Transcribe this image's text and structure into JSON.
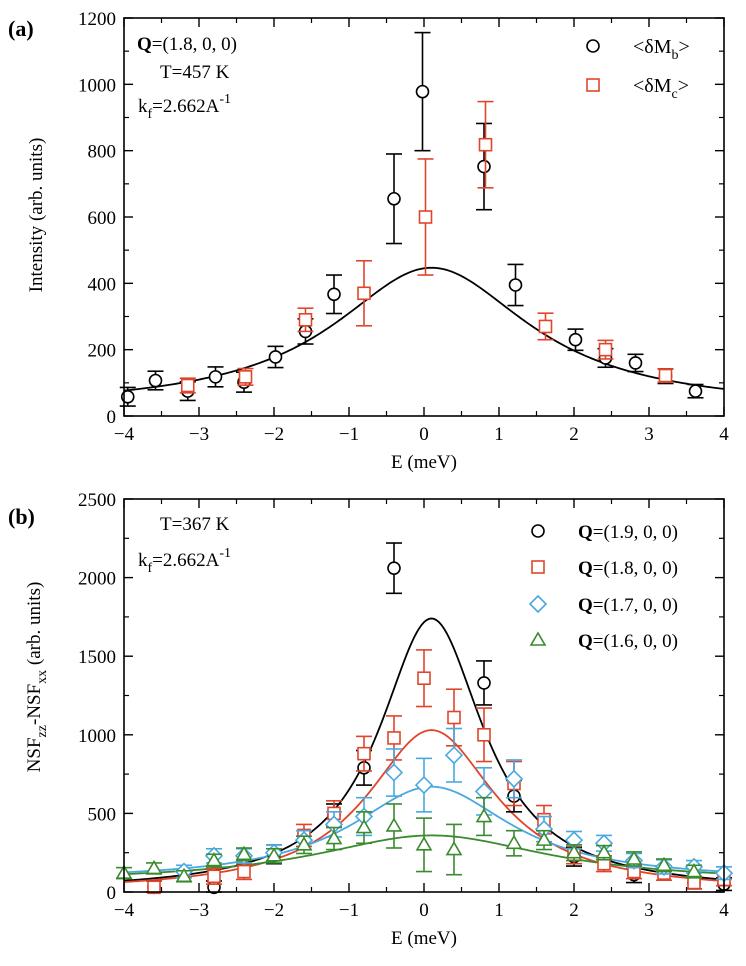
{
  "chart_data": [
    {
      "type": "scatter",
      "panel_label": "(a)",
      "xlabel": "E (meV)",
      "ylabel": "Intensity (arb. units)",
      "xlim": [
        -4,
        4
      ],
      "ylim": [
        0,
        1200
      ],
      "xticks": [
        "−4",
        "−3",
        "−2",
        "−1",
        "0",
        "1",
        "2",
        "3",
        "4"
      ],
      "yticks": [
        "0",
        "200",
        "400",
        "600",
        "800",
        "1000",
        "1200"
      ],
      "annotations": {
        "q_bold": "Q",
        "q_rest": "=(1.8, 0, 0)",
        "temperature": "T=457 K",
        "kf_main": "k",
        "kf_sub": "f",
        "kf_rest": "=2.662A",
        "kf_sup": "-1"
      },
      "legend": [
        {
          "main": "<δM",
          "sub": "b",
          "tail": ">",
          "marker": "circle",
          "color": "#000000"
        },
        {
          "main": "<δM",
          "sub": "c",
          "tail": ">",
          "marker": "square",
          "color": "#e0452b"
        }
      ],
      "series": [
        {
          "name": "<δMb>",
          "marker": "circle",
          "color": "#000000",
          "x": [
            -3.95,
            -3.58,
            -3.15,
            -2.78,
            -2.4,
            -1.98,
            -1.58,
            -1.2,
            -0.4,
            -0.02,
            0.8,
            1.22,
            2.02,
            2.42,
            2.82,
            3.22,
            3.62
          ],
          "y": [
            58,
            107,
            75,
            118,
            102,
            178,
            255,
            367,
            655,
            978,
            752,
            395,
            230,
            175,
            160,
            120,
            75
          ],
          "err": [
            28,
            28,
            28,
            30,
            30,
            32,
            38,
            58,
            135,
            178,
            130,
            62,
            32,
            28,
            26,
            22,
            20
          ]
        },
        {
          "name": "<δMc>",
          "marker": "square",
          "color": "#e0452b",
          "x": [
            -3.15,
            -2.38,
            -1.58,
            -0.8,
            0.02,
            0.82,
            1.62,
            2.42,
            3.22
          ],
          "y": [
            92,
            118,
            290,
            370,
            600,
            818,
            270,
            200,
            122
          ],
          "err": [
            22,
            25,
            35,
            98,
            175,
            130,
            40,
            28,
            20
          ]
        }
      ],
      "fits": [
        {
          "name": "fit",
          "color": "#000000",
          "amplitude": 427,
          "center": 0.1,
          "width": 1.6,
          "baseline": 20
        }
      ]
    },
    {
      "type": "scatter",
      "panel_label": "(b)",
      "xlabel": "E (meV)",
      "ylabel_main": "NSF",
      "ylabel_sub1": "zz",
      "ylabel_mid": "-NSF",
      "ylabel_sub2": "xx",
      "ylabel_tail": " (arb. units)",
      "xlim": [
        -4,
        4
      ],
      "ylim": [
        0,
        2500
      ],
      "xticks": [
        "−4",
        "−3",
        "−2",
        "−1",
        "0",
        "1",
        "2",
        "3",
        "4"
      ],
      "yticks": [
        "0",
        "500",
        "1000",
        "1500",
        "2000",
        "2500"
      ],
      "annotations": {
        "temperature": "T=367 K",
        "kf_main": "k",
        "kf_sub": "f",
        "kf_rest": "=2.662A",
        "kf_sup": "-1"
      },
      "legend": [
        {
          "bold": "Q",
          "rest": "=(1.9, 0, 0)",
          "marker": "circle",
          "color": "#000000"
        },
        {
          "bold": "Q",
          "rest": "=(1.8, 0, 0)",
          "marker": "square",
          "color": "#e0452b"
        },
        {
          "bold": "Q",
          "rest": "=(1.7, 0, 0)",
          "marker": "diamond",
          "color": "#4aa8e0"
        },
        {
          "bold": "Q",
          "rest": "=(1.6, 0, 0)",
          "marker": "triangle",
          "color": "#3a8a2e"
        }
      ],
      "series": [
        {
          "name": "Q=(1.9, 0, 0)",
          "marker": "circle",
          "color": "#000000",
          "x": [
            -3.6,
            -2.8,
            -2.0,
            -1.2,
            -0.8,
            -0.4,
            0.8,
            1.2,
            2.0,
            2.8,
            3.6,
            4.0
          ],
          "y": [
            30,
            30,
            240,
            490,
            790,
            2060,
            1330,
            610,
            225,
            110,
            60,
            50
          ],
          "err": [
            40,
            40,
            60,
            70,
            110,
            160,
            140,
            100,
            60,
            50,
            40,
            40
          ]
        },
        {
          "name": "Q=(1.8, 0, 0)",
          "marker": "square",
          "color": "#e0452b",
          "x": [
            -3.6,
            -2.8,
            -2.4,
            -1.6,
            -1.2,
            -0.8,
            -0.4,
            0.0,
            0.4,
            0.8,
            1.2,
            1.6,
            2.0,
            2.4,
            2.8,
            3.2,
            3.6,
            4.0
          ],
          "y": [
            30,
            100,
            130,
            360,
            500,
            880,
            980,
            1360,
            1110,
            1000,
            690,
            460,
            240,
            180,
            130,
            120,
            60,
            80
          ],
          "err": [
            40,
            50,
            50,
            70,
            80,
            110,
            140,
            180,
            180,
            170,
            140,
            90,
            60,
            50,
            45,
            45,
            40,
            40
          ]
        },
        {
          "name": "Q=(1.7, 0, 0)",
          "marker": "diamond",
          "color": "#4aa8e0",
          "x": [
            -3.2,
            -2.8,
            -2.4,
            -2.0,
            -1.6,
            -1.2,
            -0.8,
            -0.4,
            0.0,
            0.4,
            0.8,
            1.2,
            1.6,
            2.0,
            2.4,
            2.8,
            3.2,
            3.6,
            4.0
          ],
          "y": [
            130,
            230,
            230,
            250,
            330,
            430,
            480,
            760,
            680,
            870,
            640,
            720,
            400,
            330,
            310,
            200,
            160,
            160,
            120
          ],
          "err": [
            40,
            45,
            45,
            50,
            60,
            80,
            120,
            150,
            170,
            170,
            150,
            120,
            80,
            55,
            50,
            45,
            45,
            40,
            40
          ]
        },
        {
          "name": "Q=(1.6, 0, 0)",
          "marker": "triangle",
          "color": "#3a8a2e",
          "x": [
            -4.0,
            -3.6,
            -3.2,
            -2.8,
            -2.4,
            -2.0,
            -1.6,
            -1.2,
            -0.8,
            -0.4,
            0.0,
            0.4,
            0.8,
            1.2,
            1.6,
            2.0,
            2.4,
            2.8,
            3.2,
            3.6
          ],
          "y": [
            120,
            150,
            100,
            200,
            240,
            230,
            300,
            340,
            410,
            420,
            300,
            270,
            480,
            310,
            330,
            250,
            250,
            210,
            170,
            130
          ],
          "err": [
            35,
            35,
            35,
            40,
            40,
            45,
            55,
            70,
            100,
            140,
            170,
            160,
            120,
            80,
            60,
            50,
            45,
            45,
            40,
            40
          ]
        }
      ],
      "fits": [
        {
          "name": "Q=(1.9, 0, 0) fit",
          "color": "#000000",
          "amplitude": 1740,
          "center": 0.1,
          "width": 0.85,
          "baseline": 0
        },
        {
          "name": "Q=(1.8, 0, 0) fit",
          "color": "#e0452b",
          "amplitude": 1030,
          "center": 0.1,
          "width": 1.05,
          "baseline": 0
        },
        {
          "name": "Q=(1.7, 0, 0) fit",
          "color": "#4aa8e0",
          "amplitude": 600,
          "center": 0.1,
          "width": 1.3,
          "baseline": 70
        },
        {
          "name": "Q=(1.6, 0, 0) fit",
          "color": "#3a8a2e",
          "amplitude": 300,
          "center": 0.1,
          "width": 1.9,
          "baseline": 60
        }
      ]
    }
  ]
}
